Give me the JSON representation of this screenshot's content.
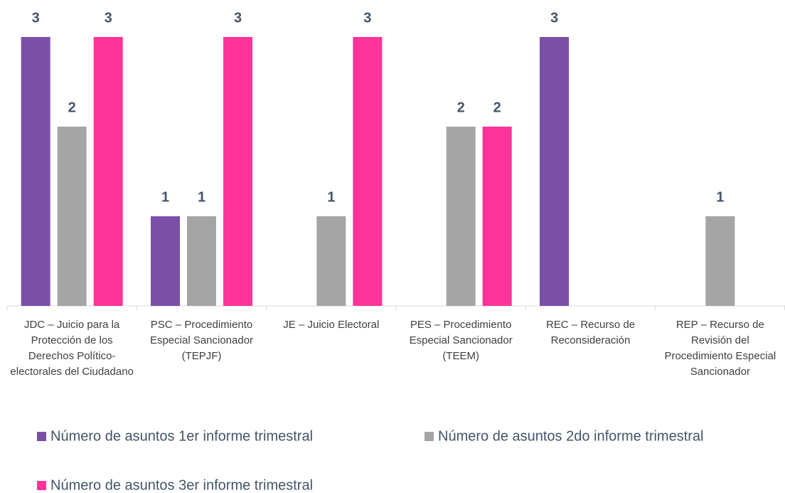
{
  "chart_data": {
    "type": "bar",
    "categories": [
      "JDC – Juicio para la Protección de los Derechos Político-electorales del Ciudadano",
      "PSC – Procedimiento Especial Sancionador (TEPJF)",
      "JE – Juicio Electoral",
      "PES – Procedimiento Especial Sancionador (TEEM)",
      "REC – Recurso de Reconsideración",
      "REP – Recurso de Revisión del Procedimiento Especial Sancionador"
    ],
    "series": [
      {
        "name": "Número de asuntos 1er informe trimestral",
        "color": "#7b4fa6",
        "values": [
          3,
          1,
          null,
          null,
          3,
          null
        ]
      },
      {
        "name": "Número de asuntos 2do informe trimestral",
        "color": "#a5a5a5",
        "values": [
          2,
          1,
          1,
          2,
          null,
          1
        ]
      },
      {
        "name": "Número de asuntos 3er informe trimestral",
        "color": "#ff3399",
        "values": [
          3,
          3,
          3,
          2,
          null,
          null
        ]
      }
    ],
    "ylim": [
      0,
      3
    ],
    "legend": "bottom"
  }
}
